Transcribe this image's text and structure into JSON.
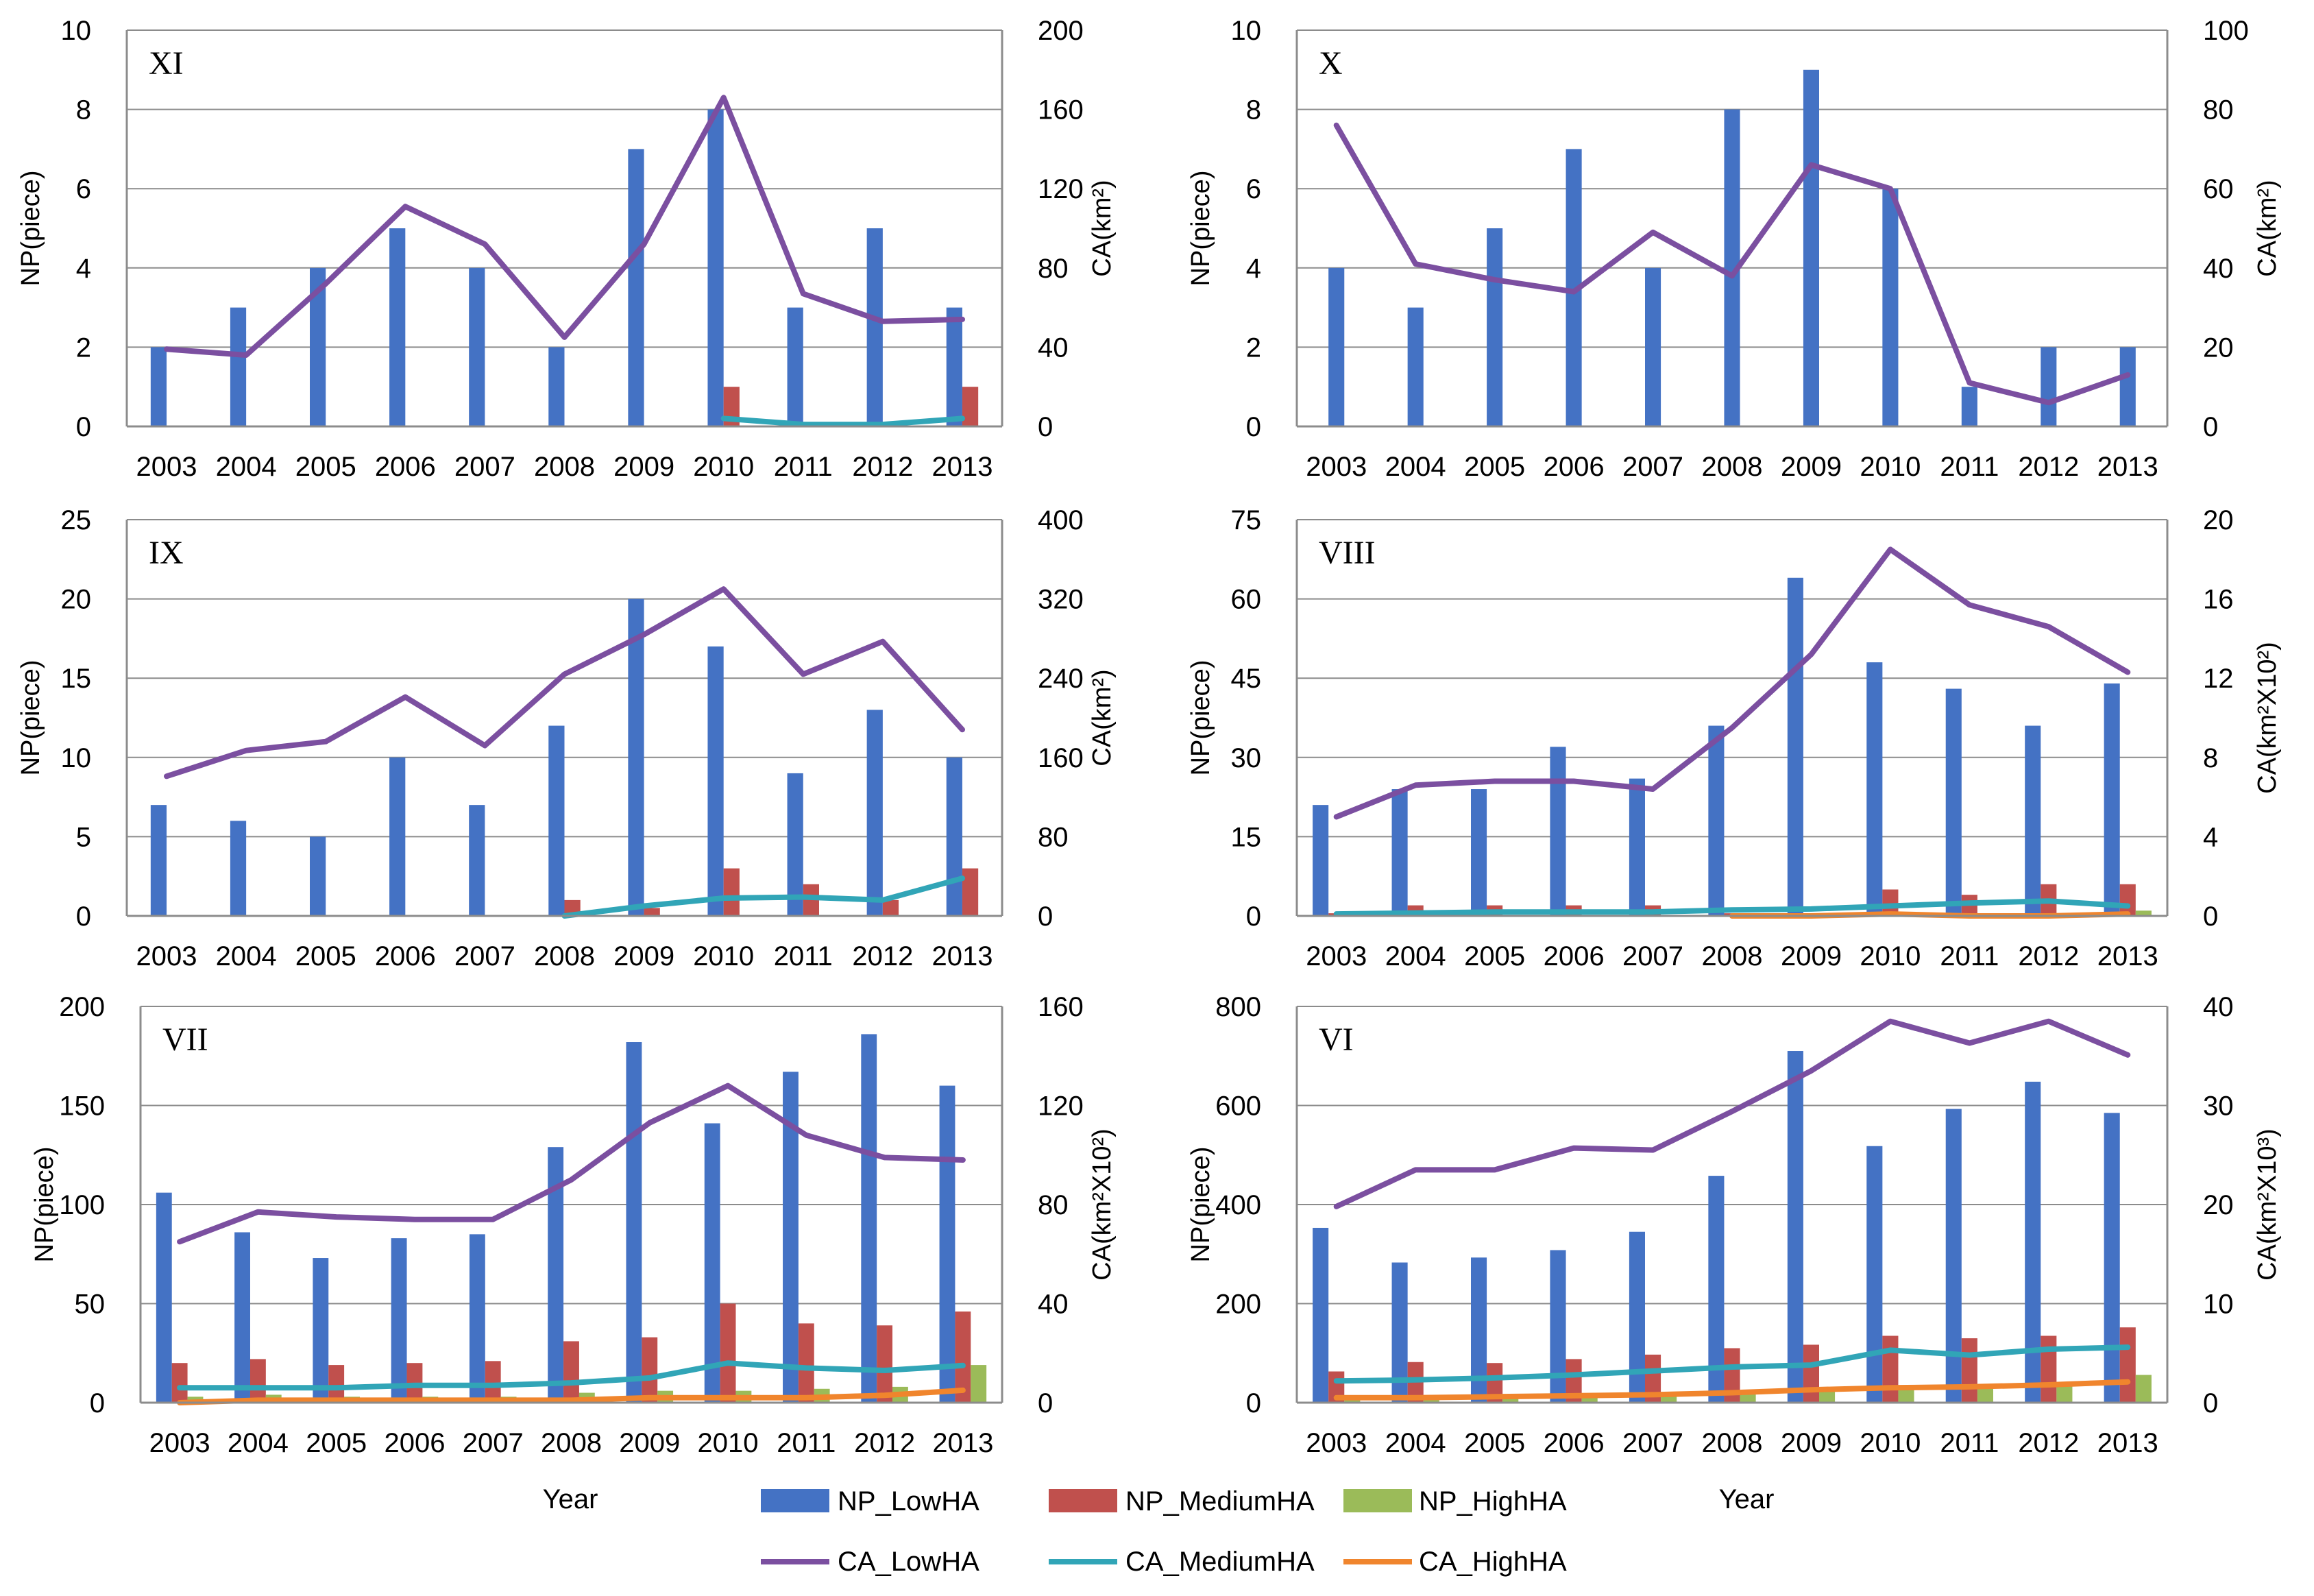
{
  "figure": {
    "x_title": "Year",
    "legend": [
      {
        "label": "NP_LowHA",
        "kind": "bar",
        "color": "#4472C4"
      },
      {
        "label": "NP_MediumHA",
        "kind": "bar",
        "color": "#C0504D"
      },
      {
        "label": "NP_HighHA",
        "kind": "bar",
        "color": "#9BBB59"
      },
      {
        "label": "CA_LowHA",
        "kind": "line",
        "color": "#7B4FA0"
      },
      {
        "label": "CA_MediumHA",
        "kind": "line",
        "color": "#31A5B7"
      },
      {
        "label": "CA_HighHA",
        "kind": "line",
        "color": "#F0852D"
      }
    ]
  },
  "chart_data": [
    {
      "type": "bar+line",
      "title": "XI",
      "categories": [
        "2003",
        "2004",
        "2005",
        "2006",
        "2007",
        "2008",
        "2009",
        "2010",
        "2011",
        "2012",
        "2013"
      ],
      "ylabel": "NP(piece)",
      "y2label": "CA(km²)",
      "ylim": [
        0,
        10
      ],
      "yticks": [
        0,
        2,
        4,
        6,
        8,
        10
      ],
      "y2lim": [
        0,
        200
      ],
      "y2ticks": [
        0,
        40,
        80,
        120,
        160,
        200
      ],
      "bar_series": [
        {
          "name": "NP_LowHA",
          "values": [
            2,
            3,
            4,
            5,
            4,
            2,
            7,
            8,
            3,
            5,
            3
          ]
        },
        {
          "name": "NP_MediumHA",
          "values": [
            0,
            0,
            0,
            0,
            0,
            0,
            0,
            1,
            0,
            0,
            1
          ]
        }
      ],
      "line_series": [
        {
          "name": "CA_LowHA",
          "values": [
            39,
            36,
            72,
            111,
            92,
            45,
            92,
            166,
            67,
            53,
            54
          ]
        },
        {
          "name": "CA_MediumHA",
          "values": [
            null,
            null,
            null,
            null,
            null,
            null,
            null,
            4,
            1,
            1,
            4
          ]
        }
      ]
    },
    {
      "type": "bar+line",
      "title": "X",
      "categories": [
        "2003",
        "2004",
        "2005",
        "2006",
        "2007",
        "2008",
        "2009",
        "2010",
        "2011",
        "2012",
        "2013"
      ],
      "ylabel": "NP(piece)",
      "y2label": "CA(km²)",
      "ylim": [
        0,
        10
      ],
      "yticks": [
        0,
        2,
        4,
        6,
        8,
        10
      ],
      "y2lim": [
        0,
        100
      ],
      "y2ticks": [
        0,
        20,
        40,
        60,
        80,
        100
      ],
      "bar_series": [
        {
          "name": "NP_LowHA",
          "values": [
            4,
            3,
            5,
            7,
            4,
            8,
            9,
            6,
            1,
            2,
            2
          ]
        }
      ],
      "line_series": [
        {
          "name": "CA_LowHA",
          "values": [
            76,
            41,
            37,
            34,
            49,
            38,
            66,
            60,
            11,
            6,
            13
          ]
        }
      ]
    },
    {
      "type": "bar+line",
      "title": "IX",
      "categories": [
        "2003",
        "2004",
        "2005",
        "2006",
        "2007",
        "2008",
        "2009",
        "2010",
        "2011",
        "2012",
        "2013"
      ],
      "ylabel": "NP(piece)",
      "y2label": "CA(km²)",
      "ylim": [
        0,
        25
      ],
      "yticks": [
        0,
        5,
        10,
        15,
        20,
        25
      ],
      "y2lim": [
        0,
        400
      ],
      "y2ticks": [
        0,
        80,
        160,
        240,
        320,
        400
      ],
      "bar_series": [
        {
          "name": "NP_LowHA",
          "values": [
            7,
            6,
            5,
            10,
            7,
            12,
            20,
            17,
            9,
            13,
            10
          ]
        },
        {
          "name": "NP_MediumHA",
          "values": [
            0,
            0,
            0,
            0,
            0,
            1,
            0.5,
            3,
            2,
            1,
            3
          ]
        }
      ],
      "line_series": [
        {
          "name": "CA_LowHA",
          "values": [
            141,
            167,
            176,
            221,
            172,
            244,
            284,
            330,
            244,
            277,
            188
          ]
        },
        {
          "name": "CA_MediumHA",
          "values": [
            null,
            null,
            null,
            null,
            null,
            0,
            10,
            18,
            19,
            16,
            38
          ]
        }
      ]
    },
    {
      "type": "bar+line",
      "title": "VIII",
      "categories": [
        "2003",
        "2004",
        "2005",
        "2006",
        "2007",
        "2008",
        "2009",
        "2010",
        "2011",
        "2012",
        "2013"
      ],
      "ylabel": "NP(piece)",
      "y2label": "CA(km²X10²)",
      "ylim": [
        0,
        75
      ],
      "yticks": [
        0,
        15,
        30,
        45,
        60,
        75
      ],
      "y2lim": [
        0,
        20
      ],
      "y2ticks": [
        0,
        4,
        8,
        12,
        16,
        20
      ],
      "bar_series": [
        {
          "name": "NP_LowHA",
          "values": [
            21,
            24,
            24,
            32,
            26,
            36,
            64,
            48,
            43,
            36,
            44
          ]
        },
        {
          "name": "NP_MediumHA",
          "values": [
            0.5,
            2,
            2,
            2,
            2,
            0.5,
            0,
            5,
            4,
            6,
            6
          ]
        },
        {
          "name": "NP_HighHA",
          "values": [
            0,
            0,
            0,
            0,
            0,
            0,
            0,
            0,
            0,
            0,
            1
          ]
        }
      ],
      "line_series": [
        {
          "name": "CA_LowHA",
          "values": [
            5,
            6.6,
            6.8,
            6.8,
            6.4,
            9.5,
            13.2,
            18.5,
            15.7,
            14.6,
            12.3
          ]
        },
        {
          "name": "CA_MediumHA",
          "values": [
            0.1,
            0.15,
            0.2,
            0.2,
            0.2,
            0.3,
            0.35,
            0.5,
            0.65,
            0.75,
            0.5
          ]
        },
        {
          "name": "CA_HighHA",
          "values": [
            null,
            null,
            null,
            null,
            null,
            0,
            0,
            0.1,
            0,
            0,
            0.1
          ]
        }
      ]
    },
    {
      "type": "bar+line",
      "title": "VII",
      "categories": [
        "2003",
        "2004",
        "2005",
        "2006",
        "2007",
        "2008",
        "2009",
        "2010",
        "2011",
        "2012",
        "2013"
      ],
      "ylabel": "NP(piece)",
      "y2label": "CA(km²X10²)",
      "ylim": [
        0,
        200
      ],
      "yticks": [
        0,
        50,
        100,
        150,
        200
      ],
      "y2lim": [
        0,
        160
      ],
      "y2ticks": [
        0,
        40,
        80,
        120,
        160
      ],
      "bar_series": [
        {
          "name": "NP_LowHA",
          "values": [
            106,
            86,
            73,
            83,
            85,
            129,
            182,
            141,
            167,
            186,
            160
          ]
        },
        {
          "name": "NP_MediumHA",
          "values": [
            20,
            22,
            19,
            20,
            21,
            31,
            33,
            50,
            40,
            39,
            46
          ]
        },
        {
          "name": "NP_HighHA",
          "values": [
            3,
            4,
            3,
            3,
            3,
            5,
            6,
            6,
            7,
            8,
            19
          ]
        }
      ],
      "line_series": [
        {
          "name": "CA_LowHA",
          "values": [
            65,
            77,
            75,
            74,
            74,
            90,
            113,
            128,
            108,
            99,
            98
          ]
        },
        {
          "name": "CA_MediumHA",
          "values": [
            6,
            6,
            6,
            7,
            7,
            8,
            10,
            16,
            14,
            13,
            15
          ]
        },
        {
          "name": "CA_HighHA",
          "values": [
            0,
            1,
            1,
            1,
            1,
            1,
            2,
            2,
            2,
            3,
            5
          ]
        }
      ]
    },
    {
      "type": "bar+line",
      "title": "VI",
      "categories": [
        "2003",
        "2004",
        "2005",
        "2006",
        "2007",
        "2008",
        "2009",
        "2010",
        "2011",
        "2012",
        "2013"
      ],
      "ylabel": "NP(piece)",
      "y2label": "CA(km²X10³)",
      "ylim": [
        0,
        800
      ],
      "yticks": [
        0,
        200,
        400,
        600,
        800
      ],
      "y2lim": [
        0,
        40
      ],
      "y2ticks": [
        0,
        10,
        20,
        30,
        40
      ],
      "bar_series": [
        {
          "name": "NP_LowHA",
          "values": [
            353,
            283,
            293,
            308,
            345,
            458,
            710,
            518,
            593,
            648,
            585
          ]
        },
        {
          "name": "NP_MediumHA",
          "values": [
            63,
            82,
            80,
            88,
            97,
            110,
            117,
            135,
            130,
            135,
            152
          ]
        },
        {
          "name": "NP_HighHA",
          "values": [
            10,
            12,
            12,
            14,
            16,
            20,
            25,
            28,
            30,
            35,
            56
          ]
        }
      ],
      "line_series": [
        {
          "name": "CA_LowHA",
          "values": [
            19.8,
            23.5,
            23.5,
            25.7,
            25.5,
            29.4,
            33.5,
            38.5,
            36.3,
            38.5,
            35.1
          ]
        },
        {
          "name": "CA_MediumHA",
          "values": [
            2.2,
            2.3,
            2.5,
            2.8,
            3.2,
            3.6,
            3.8,
            5.3,
            4.8,
            5.4,
            5.6
          ]
        },
        {
          "name": "CA_HighHA",
          "values": [
            0.5,
            0.5,
            0.6,
            0.7,
            0.8,
            1.0,
            1.3,
            1.5,
            1.6,
            1.8,
            2.1
          ]
        }
      ]
    }
  ]
}
